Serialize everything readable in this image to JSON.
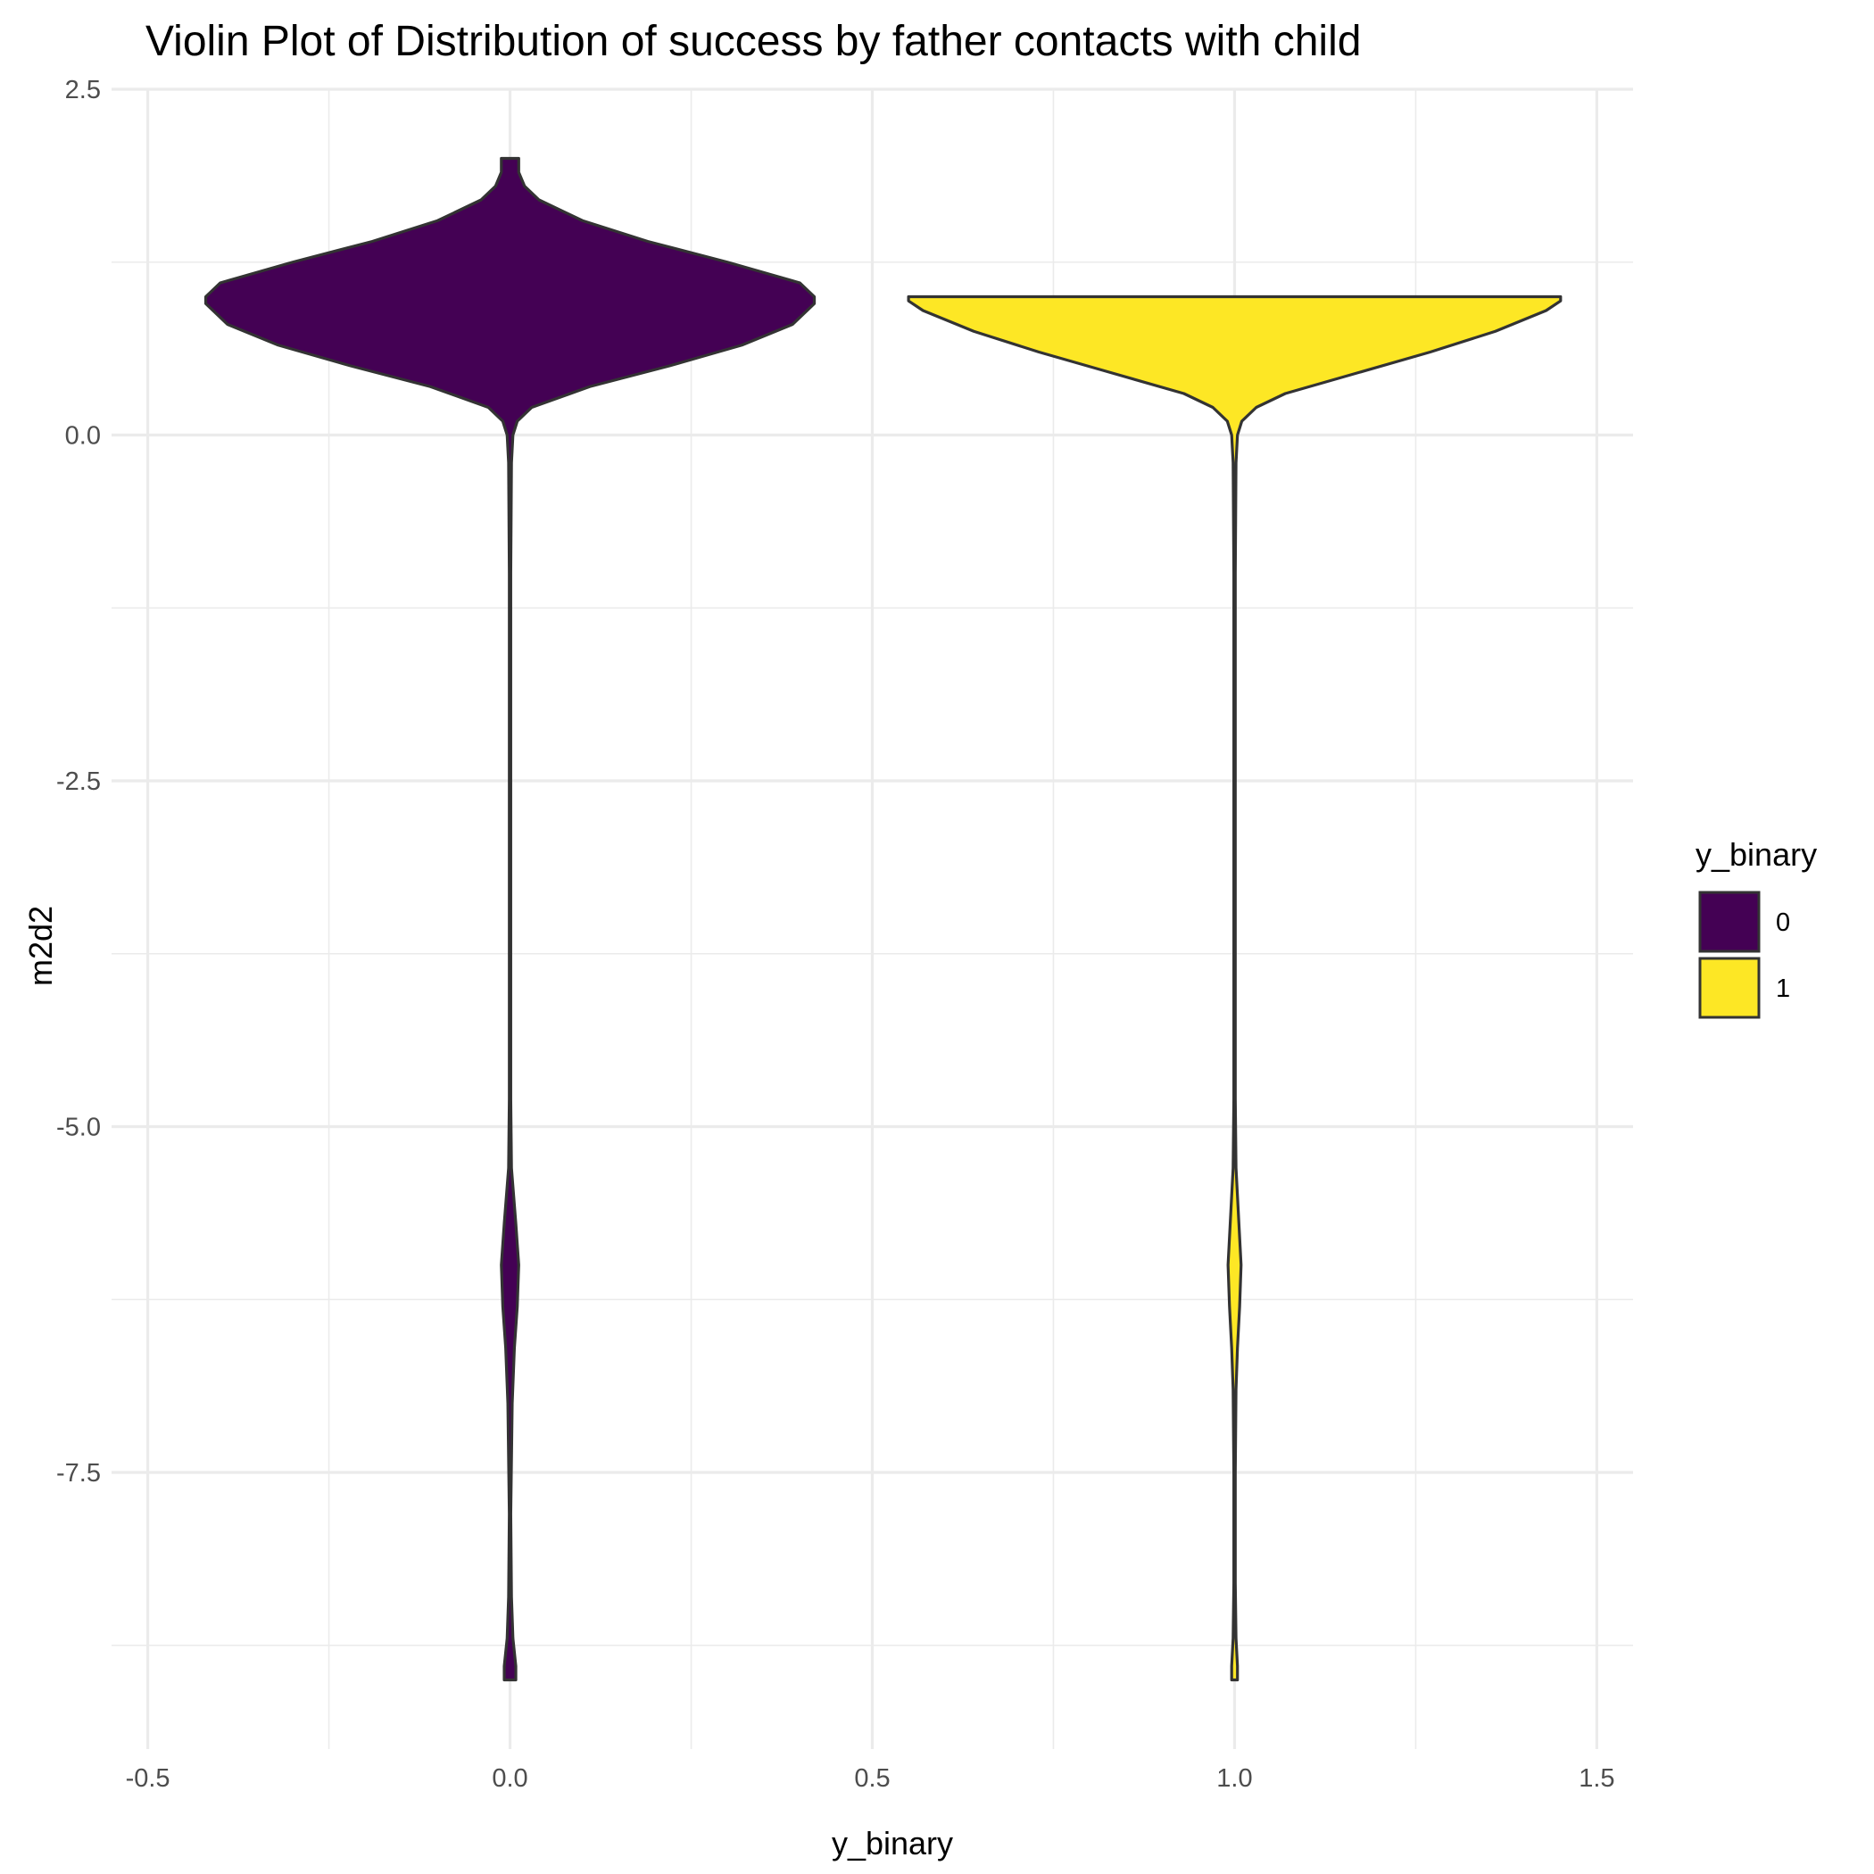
{
  "chart_data": {
    "type": "violin",
    "title": "Violin Plot of Distribution of success by father contacts with child",
    "xlabel": "y_binary",
    "ylabel": "m2d2",
    "xlim": [
      -0.55,
      1.55
    ],
    "ylim": [
      -9.5,
      2.5
    ],
    "x_ticks": [
      -0.5,
      0.0,
      0.5,
      1.0,
      1.5
    ],
    "x_tick_labels": [
      "-0.5",
      "0.0",
      "0.5",
      "1.0",
      "1.5"
    ],
    "y_ticks": [
      2.5,
      0.0,
      -2.5,
      -5.0,
      -7.5
    ],
    "y_tick_labels": [
      "2.5",
      "0.0",
      "-2.5",
      "-5.0",
      "-7.5"
    ],
    "grid": true,
    "legend": {
      "title": "y_binary",
      "placement": "right",
      "entries": [
        {
          "label": "0",
          "color": "#440154"
        },
        {
          "label": "1",
          "color": "#FDE725"
        }
      ]
    },
    "series": [
      {
        "group": "0",
        "x": 0.0,
        "color": "#440154",
        "y_min": -9,
        "y_max": 2,
        "profile": [
          [
            -9.0,
            0.008
          ],
          [
            -8.9,
            0.008
          ],
          [
            -8.7,
            0.004
          ],
          [
            -8.4,
            0.002
          ],
          [
            -7.8,
            0.001
          ],
          [
            -7.0,
            0.003
          ],
          [
            -6.6,
            0.006
          ],
          [
            -6.3,
            0.01
          ],
          [
            -6.0,
            0.012
          ],
          [
            -5.7,
            0.008
          ],
          [
            -5.3,
            0.002
          ],
          [
            -4.8,
            0.001
          ],
          [
            -3.0,
            0.001
          ],
          [
            -1.0,
            0.001
          ],
          [
            -0.2,
            0.002
          ],
          [
            0.0,
            0.004
          ],
          [
            0.1,
            0.01
          ],
          [
            0.2,
            0.03
          ],
          [
            0.35,
            0.11
          ],
          [
            0.5,
            0.22
          ],
          [
            0.65,
            0.32
          ],
          [
            0.8,
            0.39
          ],
          [
            0.95,
            0.42
          ],
          [
            1.0,
            0.42
          ],
          [
            1.1,
            0.4
          ],
          [
            1.25,
            0.3
          ],
          [
            1.4,
            0.19
          ],
          [
            1.55,
            0.1
          ],
          [
            1.7,
            0.04
          ],
          [
            1.8,
            0.02
          ],
          [
            1.9,
            0.012
          ],
          [
            2.0,
            0.012
          ]
        ]
      },
      {
        "group": "1",
        "x": 1.0,
        "color": "#FDE725",
        "y_min": -9,
        "y_max": 1,
        "profile": [
          [
            -9.0,
            0.004
          ],
          [
            -8.9,
            0.004
          ],
          [
            -8.7,
            0.002
          ],
          [
            -8.3,
            0.001
          ],
          [
            -7.5,
            0.001
          ],
          [
            -6.9,
            0.002
          ],
          [
            -6.6,
            0.004
          ],
          [
            -6.3,
            0.007
          ],
          [
            -6.0,
            0.009
          ],
          [
            -5.7,
            0.006
          ],
          [
            -5.3,
            0.002
          ],
          [
            -4.8,
            0.001
          ],
          [
            -3.0,
            0.001
          ],
          [
            -1.0,
            0.001
          ],
          [
            -0.2,
            0.002
          ],
          [
            0.0,
            0.004
          ],
          [
            0.1,
            0.01
          ],
          [
            0.2,
            0.03
          ],
          [
            0.3,
            0.07
          ],
          [
            0.45,
            0.17
          ],
          [
            0.6,
            0.27
          ],
          [
            0.75,
            0.36
          ],
          [
            0.9,
            0.43
          ],
          [
            0.97,
            0.45
          ],
          [
            1.0,
            0.45
          ]
        ]
      }
    ]
  }
}
